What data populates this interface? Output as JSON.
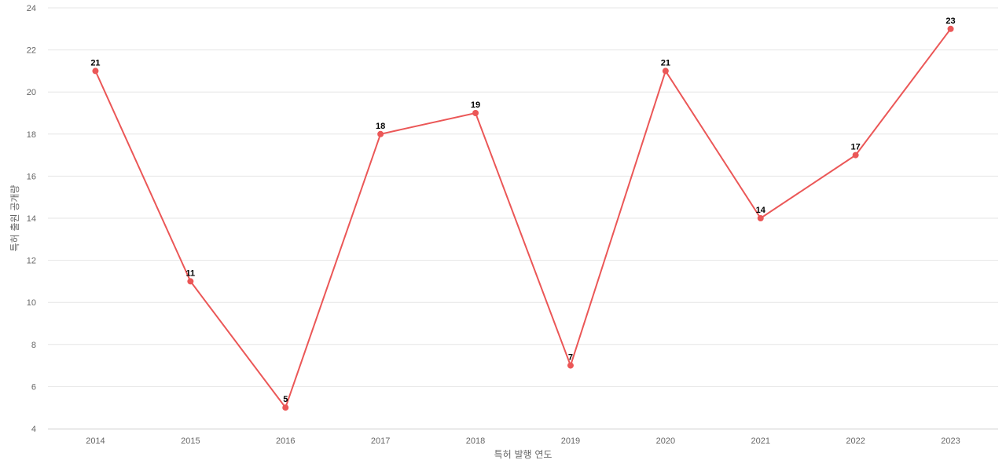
{
  "chart_data": {
    "type": "line",
    "title": "",
    "xlabel": "특허 발행 연도",
    "ylabel": "특허 출원 공개량",
    "categories": [
      "2014",
      "2015",
      "2016",
      "2017",
      "2018",
      "2019",
      "2020",
      "2021",
      "2022",
      "2023"
    ],
    "values": [
      21,
      11,
      5,
      18,
      19,
      7,
      21,
      14,
      17,
      23
    ],
    "ylim": [
      4,
      24
    ],
    "yticks": [
      4,
      6,
      8,
      10,
      12,
      14,
      16,
      18,
      20,
      22,
      24
    ],
    "grid": true,
    "legend": "none",
    "data_labels": true,
    "colors": {
      "line": "#eb5757",
      "grid": "#e6e6e6",
      "axis": "#cccccc"
    }
  }
}
